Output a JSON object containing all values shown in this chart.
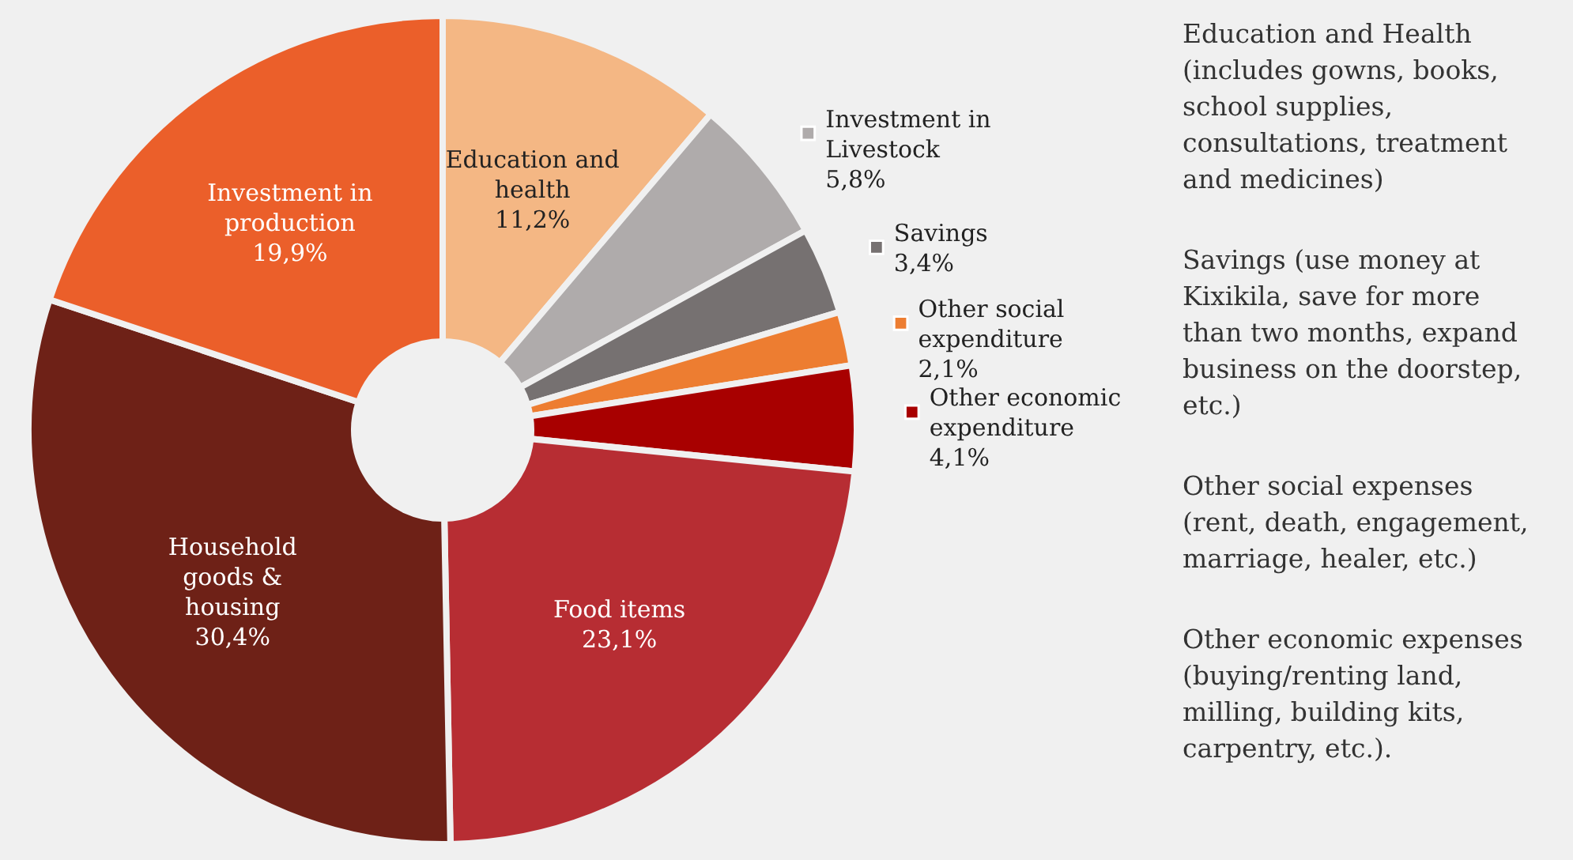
{
  "chart_data": {
    "type": "donut",
    "categories": [
      "Education and health",
      "Investment in Livestock",
      "Savings",
      "Other social expenditure",
      "Other economic expenditure",
      "Food items",
      "Household goods & housing",
      "Investment in production"
    ],
    "values": [
      11.2,
      5.8,
      3.4,
      2.1,
      4.1,
      23.1,
      30.4,
      19.9
    ],
    "value_labels": [
      "11,2%",
      "5,8%",
      "3,4%",
      "2,1%",
      "4,1%",
      "23,1%",
      "30,4%",
      "19,9%"
    ],
    "colors": [
      "#f4b784",
      "#afabab",
      "#767171",
      "#ed7d31",
      "#a80000",
      "#b72d33",
      "#6e2117",
      "#eb5f2a"
    ],
    "annotations": [
      "Education and Health (includes gowns, books, school supplies, consultations, treatment and medicines)",
      "Savings (use money at Kixikila, save for more than two months, expand business on the doorstep, etc.)",
      "Other social expenses (rent, death, engagement, marriage, healer, etc.)",
      "Other economic expenses (buying/renting land, milling, building kits, carpentry, etc.)."
    ],
    "legend": "right"
  }
}
